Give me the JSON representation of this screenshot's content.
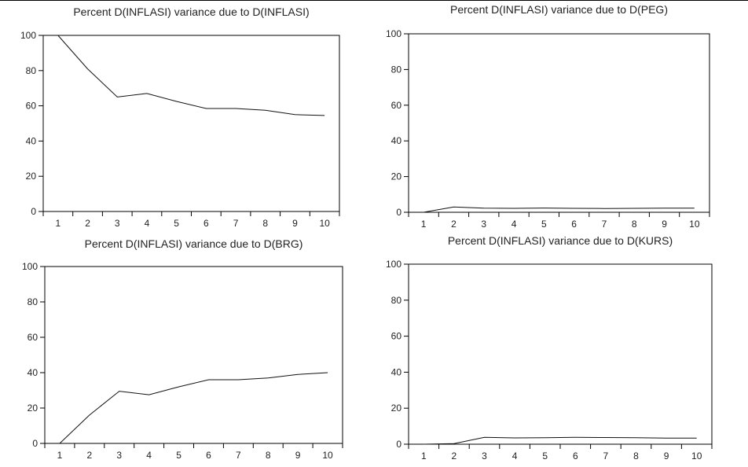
{
  "chart_data": [
    {
      "type": "line",
      "title": "Percent D(INFLASI) variance due to D(INFLASI)",
      "x": [
        1,
        2,
        3,
        4,
        5,
        6,
        7,
        8,
        9,
        10
      ],
      "series": [
        {
          "values": [
            100,
            81,
            65,
            67,
            62.5,
            58.5,
            58.5,
            57.5,
            55,
            54.5
          ]
        }
      ],
      "xlim": [
        0.5,
        10.5
      ],
      "ylim": [
        0,
        100
      ],
      "yticks": [
        0,
        20,
        40,
        60,
        80,
        100
      ],
      "grid": false,
      "line_color": "#111111"
    },
    {
      "type": "line",
      "title": "Percent D(INFLASI) variance due to D(PEG)",
      "x": [
        1,
        2,
        3,
        4,
        5,
        6,
        7,
        8,
        9,
        10
      ],
      "series": [
        {
          "values": [
            0,
            3,
            2.3,
            2.2,
            2.4,
            2.2,
            2.1,
            2.2,
            2.3,
            2.3
          ]
        }
      ],
      "xlim": [
        0.5,
        10.5
      ],
      "ylim": [
        0,
        100
      ],
      "yticks": [
        0,
        20,
        40,
        60,
        80,
        100
      ],
      "grid": false,
      "line_color": "#111111"
    },
    {
      "type": "line",
      "title": "Percent D(INFLASI) variance due to D(BRG)",
      "x": [
        1,
        2,
        3,
        4,
        5,
        6,
        7,
        8,
        9,
        10
      ],
      "series": [
        {
          "values": [
            0,
            16,
            29.5,
            27.5,
            32,
            36,
            36,
            37,
            39,
            40
          ]
        }
      ],
      "xlim": [
        0.5,
        10.5
      ],
      "ylim": [
        0,
        100
      ],
      "yticks": [
        0,
        20,
        40,
        60,
        80,
        100
      ],
      "grid": false,
      "line_color": "#111111"
    },
    {
      "type": "line",
      "title": "Percent D(INFLASI) variance due to D(KURS)",
      "x": [
        1,
        2,
        3,
        4,
        5,
        6,
        7,
        8,
        9,
        10
      ],
      "series": [
        {
          "values": [
            0,
            0.3,
            3.8,
            3.5,
            3.6,
            3.8,
            3.7,
            3.6,
            3.4,
            3.4
          ]
        }
      ],
      "xlim": [
        0.5,
        10.5
      ],
      "ylim": [
        0,
        100
      ],
      "yticks": [
        0,
        20,
        40,
        60,
        80,
        100
      ],
      "grid": false,
      "line_color": "#111111"
    }
  ]
}
